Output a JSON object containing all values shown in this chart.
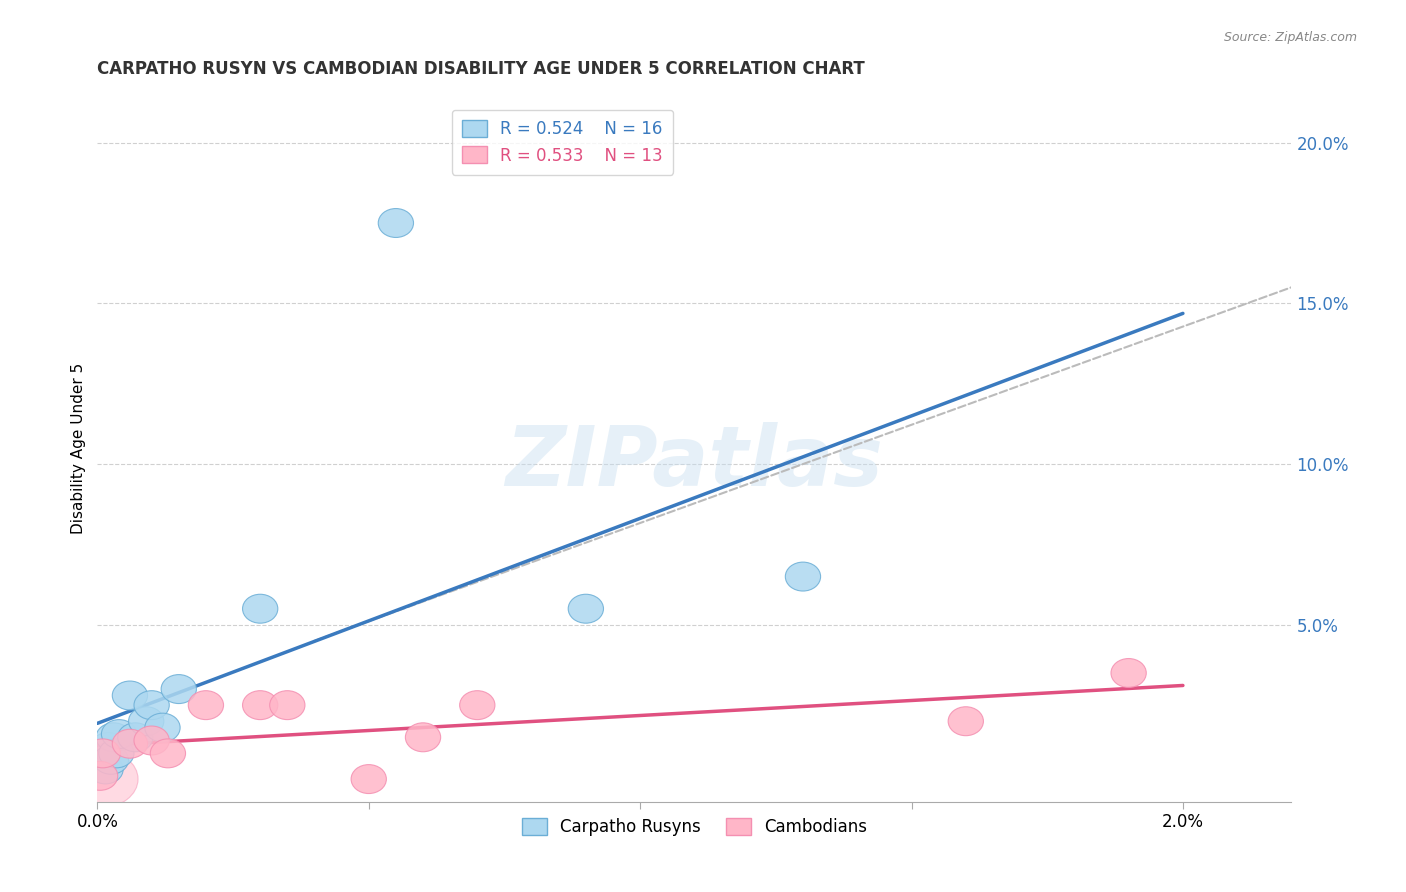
{
  "title": "CARPATHO RUSYN VS CAMBODIAN DISABILITY AGE UNDER 5 CORRELATION CHART",
  "source": "Source: ZipAtlas.com",
  "ylabel": "Disability Age Under 5",
  "xlim": [
    0.0,
    0.022
  ],
  "ylim": [
    -0.005,
    0.215
  ],
  "blue_points_x": [
    0.00015,
    0.0002,
    0.00025,
    0.0003,
    0.00035,
    0.0004,
    0.0006,
    0.0007,
    0.0009,
    0.001,
    0.0012,
    0.0015,
    0.003,
    0.0055,
    0.009,
    0.013
  ],
  "blue_points_y": [
    0.005,
    0.012,
    0.008,
    0.015,
    0.01,
    0.016,
    0.028,
    0.015,
    0.02,
    0.025,
    0.018,
    0.03,
    0.055,
    0.175,
    0.055,
    0.065
  ],
  "pink_points_x": [
    5e-05,
    0.0001,
    0.0006,
    0.001,
    0.0013,
    0.002,
    0.003,
    0.0035,
    0.005,
    0.006,
    0.007,
    0.016,
    0.019
  ],
  "pink_points_y": [
    0.003,
    0.01,
    0.013,
    0.014,
    0.01,
    0.025,
    0.025,
    0.025,
    0.002,
    0.015,
    0.025,
    0.02,
    0.035
  ],
  "blue_R": "0.524",
  "blue_N": "16",
  "pink_R": "0.533",
  "pink_N": "13",
  "blue_color": "#add8f0",
  "pink_color": "#ffb6c8",
  "blue_edge_color": "#6baed6",
  "pink_edge_color": "#f48fb1",
  "blue_line_color": "#3a7abf",
  "pink_line_color": "#e05080",
  "dashed_line_color": "#bbbbbb",
  "legend_labels": [
    "Carpatho Rusyns",
    "Cambodians"
  ],
  "watermark_text": "ZIPatlas",
  "background_color": "#ffffff",
  "grid_color": "#d0d0d0",
  "title_color": "#333333",
  "source_color": "#888888",
  "right_axis_color": "#3a7abf"
}
